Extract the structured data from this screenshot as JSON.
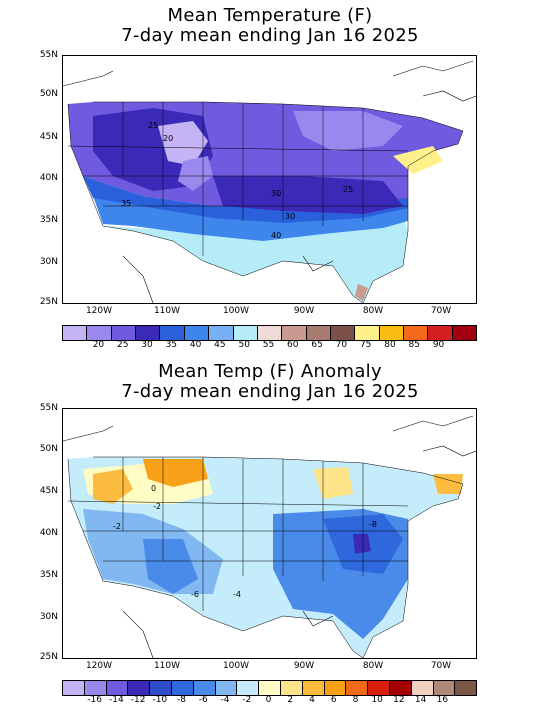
{
  "panels": [
    {
      "title_line1": "Mean Temperature (F)",
      "title_line2": "7-day mean ending Jan 16 2025",
      "lat_labels": [
        "55N",
        "50N",
        "45N",
        "40N",
        "35N",
        "30N",
        "25N"
      ],
      "lon_labels": [
        "120W",
        "110W",
        "100W",
        "90W",
        "80W",
        "70W"
      ],
      "contour_labels": [
        {
          "text": "25"
        },
        {
          "text": "20"
        },
        {
          "text": "30"
        },
        {
          "text": "25"
        },
        {
          "text": "35"
        },
        {
          "text": "30"
        },
        {
          "text": "40"
        }
      ],
      "colorbar": {
        "colors": [
          "#c4b4f5",
          "#9a88ee",
          "#6f5ae0",
          "#3b2ab8",
          "#2a60dc",
          "#3f86ec",
          "#77b0f4",
          "#b6ecf8",
          "#f0dcd6",
          "#c89a90",
          "#a87a70",
          "#7c5248",
          "#fff08a",
          "#fbbc14",
          "#f46a1c",
          "#d42020",
          "#a00010"
        ],
        "ticks": [
          "20",
          "25",
          "30",
          "35",
          "40",
          "45",
          "50",
          "55",
          "60",
          "65",
          "70",
          "75",
          "80",
          "85",
          "90"
        ]
      }
    },
    {
      "title_line1": "Mean Temp (F) Anomaly",
      "title_line2": "7-day mean ending Jan 16 2025",
      "lat_labels": [
        "55N",
        "50N",
        "45N",
        "40N",
        "35N",
        "30N",
        "25N"
      ],
      "lon_labels": [
        "120W",
        "110W",
        "100W",
        "90W",
        "80W",
        "70W"
      ],
      "contour_labels": [
        {
          "text": "-2"
        },
        {
          "text": "0"
        },
        {
          "text": "-2"
        },
        {
          "text": "-6"
        },
        {
          "text": "-4"
        },
        {
          "text": "-8"
        }
      ],
      "colorbar": {
        "colors": [
          "#c4b4f5",
          "#9a88ee",
          "#6f5ae0",
          "#3b2ab8",
          "#2a4cc8",
          "#2e68dc",
          "#4a8ae8",
          "#82b8f2",
          "#c4ecfb",
          "#fffbc4",
          "#fde488",
          "#fbbc40",
          "#f8a018",
          "#f06a18",
          "#d82010",
          "#a00000",
          "#f0d0c0",
          "#b08878",
          "#7a5848"
        ],
        "ticks": [
          "-16",
          "-14",
          "-12",
          "-10",
          "-8",
          "-6",
          "-4",
          "-2",
          "0",
          "2",
          "4",
          "6",
          "8",
          "10",
          "12",
          "14",
          "16"
        ]
      }
    }
  ]
}
